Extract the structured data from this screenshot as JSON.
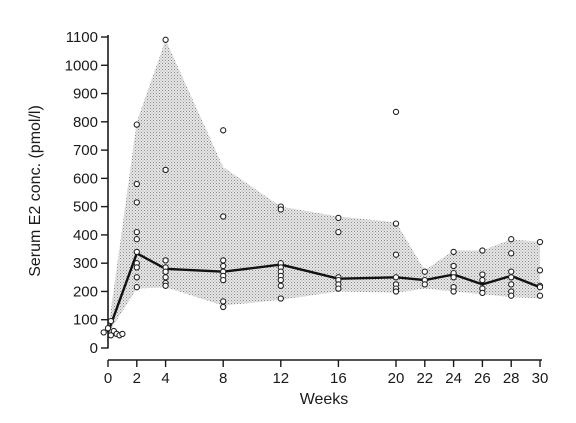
{
  "chart_data": {
    "type": "line",
    "xlabel": "Weeks",
    "ylabel": "Serum E2 conc. (pmol/l)",
    "xlim": [
      0,
      30
    ],
    "ylim": [
      0,
      1100
    ],
    "x_ticks": [
      0,
      2,
      4,
      8,
      12,
      16,
      20,
      22,
      24,
      26,
      28,
      30
    ],
    "y_ticks": [
      0,
      100,
      200,
      300,
      400,
      500,
      600,
      700,
      800,
      900,
      1000,
      1100
    ],
    "grid": false,
    "series": [
      {
        "type": "line",
        "x": [
          0,
          2,
          4,
          8,
          12,
          16,
          20,
          22,
          24,
          26,
          28,
          30
        ],
        "y": [
          55,
          335,
          280,
          270,
          295,
          245,
          250,
          240,
          260,
          225,
          255,
          215
        ]
      },
      {
        "type": "band",
        "x": [
          0,
          2,
          4,
          8,
          12,
          16,
          20,
          22,
          24,
          26,
          28,
          30
        ],
        "upper": [
          60,
          800,
          1090,
          640,
          500,
          465,
          445,
          275,
          345,
          345,
          385,
          375
        ],
        "lower": [
          50,
          210,
          215,
          150,
          170,
          200,
          195,
          210,
          200,
          190,
          180,
          175
        ]
      },
      {
        "type": "scatter",
        "points": [
          [
            -0.3,
            55
          ],
          [
            0,
            70
          ],
          [
            0.2,
            45
          ],
          [
            0.4,
            60
          ],
          [
            0.6,
            50
          ],
          [
            0.8,
            45
          ],
          [
            0.2,
            95
          ],
          [
            1.0,
            50
          ],
          [
            2,
            790
          ],
          [
            2,
            580
          ],
          [
            2,
            515
          ],
          [
            2,
            410
          ],
          [
            2,
            385
          ],
          [
            2,
            340
          ],
          [
            2,
            300
          ],
          [
            2,
            285
          ],
          [
            2,
            250
          ],
          [
            2,
            215
          ],
          [
            4,
            1090
          ],
          [
            4,
            630
          ],
          [
            4,
            310
          ],
          [
            4,
            285
          ],
          [
            4,
            270
          ],
          [
            4,
            250
          ],
          [
            4,
            230
          ],
          [
            4,
            220
          ],
          [
            8,
            770
          ],
          [
            8,
            465
          ],
          [
            8,
            310
          ],
          [
            8,
            290
          ],
          [
            8,
            270
          ],
          [
            8,
            255
          ],
          [
            8,
            240
          ],
          [
            8,
            165
          ],
          [
            8,
            145
          ],
          [
            12,
            500
          ],
          [
            12,
            490
          ],
          [
            12,
            300
          ],
          [
            12,
            285
          ],
          [
            12,
            270
          ],
          [
            12,
            255
          ],
          [
            12,
            240
          ],
          [
            12,
            220
          ],
          [
            12,
            175
          ],
          [
            16,
            460
          ],
          [
            16,
            410
          ],
          [
            16,
            250
          ],
          [
            16,
            240
          ],
          [
            16,
            225
          ],
          [
            16,
            210
          ],
          [
            20,
            835
          ],
          [
            20,
            440
          ],
          [
            20,
            330
          ],
          [
            20,
            250
          ],
          [
            20,
            225
          ],
          [
            20,
            210
          ],
          [
            20,
            200
          ],
          [
            22,
            270
          ],
          [
            22,
            240
          ],
          [
            22,
            225
          ],
          [
            24,
            340
          ],
          [
            24,
            290
          ],
          [
            24,
            265
          ],
          [
            24,
            250
          ],
          [
            24,
            215
          ],
          [
            24,
            200
          ],
          [
            26,
            345
          ],
          [
            26,
            260
          ],
          [
            26,
            240
          ],
          [
            26,
            210
          ],
          [
            26,
            195
          ],
          [
            28,
            385
          ],
          [
            28,
            335
          ],
          [
            28,
            270
          ],
          [
            28,
            250
          ],
          [
            28,
            225
          ],
          [
            28,
            200
          ],
          [
            28,
            185
          ],
          [
            30,
            375
          ],
          [
            30,
            275
          ],
          [
            30,
            220
          ],
          [
            30,
            215
          ],
          [
            30,
            185
          ]
        ]
      }
    ]
  }
}
